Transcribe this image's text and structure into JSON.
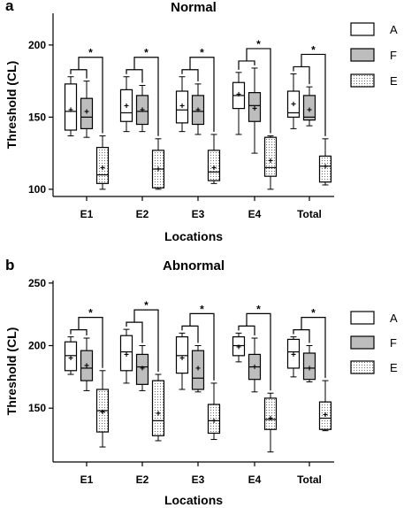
{
  "colors": {
    "A": "#ffffff",
    "F": "#bdbdbd",
    "E": "#ffffff",
    "stroke": "#000000",
    "dots": "#707070"
  },
  "legend": [
    {
      "key": "A",
      "label": "A",
      "fill": "white"
    },
    {
      "key": "F",
      "label": "F",
      "fill": "gray"
    },
    {
      "key": "E",
      "label": "E",
      "fill": "dotted"
    }
  ],
  "chart_data": [
    {
      "type": "box",
      "panel": "a",
      "title": "Normal",
      "xlabel": "Locations",
      "ylabel": "Threshold (CL)",
      "ylim": [
        95,
        222
      ],
      "yticks": [
        100,
        150,
        200
      ],
      "categories": [
        "E1",
        "E2",
        "E3",
        "E4",
        "Total"
      ],
      "significance_marker": "*",
      "series": [
        {
          "name": "A",
          "boxes": [
            {
              "min": 137,
              "q1": 141,
              "median": 154,
              "q3": 173,
              "max": 178,
              "mean": 155
            },
            {
              "min": 140,
              "q1": 147,
              "median": 153,
              "q3": 169,
              "max": 178,
              "mean": 158
            },
            {
              "min": 140,
              "q1": 146,
              "median": 155,
              "q3": 168,
              "max": 178,
              "mean": 158
            },
            {
              "min": 138,
              "q1": 156,
              "median": 165,
              "q3": 174,
              "max": 181,
              "mean": 166
            },
            {
              "min": 142,
              "q1": 150,
              "median": 153,
              "q3": 168,
              "max": 180,
              "mean": 159
            }
          ]
        },
        {
          "name": "F",
          "boxes": [
            {
              "min": 136,
              "q1": 142,
              "median": 150,
              "q3": 163,
              "max": 175,
              "mean": 154
            },
            {
              "min": 140,
              "q1": 145,
              "median": 154,
              "q3": 165,
              "max": 172,
              "mean": 155
            },
            {
              "min": 138,
              "q1": 145,
              "median": 154,
              "q3": 165,
              "max": 173,
              "mean": 155
            },
            {
              "min": 125,
              "q1": 147,
              "median": 158,
              "q3": 167,
              "max": 184,
              "mean": 156
            },
            {
              "min": 144,
              "q1": 148,
              "median": 150,
              "q3": 165,
              "max": 171,
              "mean": 155
            }
          ]
        },
        {
          "name": "E",
          "boxes": [
            {
              "min": 100,
              "q1": 104,
              "median": 110,
              "q3": 129,
              "max": 137,
              "mean": 115
            },
            {
              "min": 100,
              "q1": 101,
              "median": 114,
              "q3": 127,
              "max": 135,
              "mean": 114
            },
            {
              "min": 104,
              "q1": 106,
              "median": 112,
              "q3": 127,
              "max": 138,
              "mean": 115
            },
            {
              "min": 100,
              "q1": 109,
              "median": 115,
              "q3": 136,
              "max": 137,
              "mean": 120
            },
            {
              "min": 103,
              "q1": 105,
              "median": 116,
              "q3": 123,
              "max": 135,
              "mean": 116
            }
          ]
        }
      ]
    },
    {
      "type": "box",
      "panel": "b",
      "title": "Abnormal",
      "xlabel": "Locations",
      "ylabel": "Threshold (CL)",
      "ylim": [
        107,
        252
      ],
      "yticks": [
        150,
        200,
        250
      ],
      "categories": [
        "E1",
        "E2",
        "E3",
        "E4",
        "Total"
      ],
      "significance_marker": "*",
      "series": [
        {
          "name": "A",
          "boxes": [
            {
              "min": 177,
              "q1": 180,
              "median": 192,
              "q3": 203,
              "max": 207,
              "mean": 190
            },
            {
              "min": 170,
              "q1": 180,
              "median": 195,
              "q3": 208,
              "max": 213,
              "mean": 193
            },
            {
              "min": 165,
              "q1": 178,
              "median": 192,
              "q3": 207,
              "max": 210,
              "mean": 190
            },
            {
              "min": 187,
              "q1": 192,
              "median": 200,
              "q3": 207,
              "max": 210,
              "mean": 199
            },
            {
              "min": 175,
              "q1": 182,
              "median": 195,
              "q3": 205,
              "max": 207,
              "mean": 193
            }
          ]
        },
        {
          "name": "F",
          "boxes": [
            {
              "min": 164,
              "q1": 172,
              "median": 182,
              "q3": 196,
              "max": 206,
              "mean": 184
            },
            {
              "min": 164,
              "q1": 169,
              "median": 183,
              "q3": 193,
              "max": 200,
              "mean": 182
            },
            {
              "min": 163,
              "q1": 165,
              "median": 174,
              "q3": 196,
              "max": 200,
              "mean": 182
            },
            {
              "min": 163,
              "q1": 173,
              "median": 183,
              "q3": 193,
              "max": 206,
              "mean": 183
            },
            {
              "min": 171,
              "q1": 173,
              "median": 182,
              "q3": 194,
              "max": 200,
              "mean": 182
            }
          ]
        },
        {
          "name": "E",
          "boxes": [
            {
              "min": 119,
              "q1": 131,
              "median": 148,
              "q3": 165,
              "max": 180,
              "mean": 147
            },
            {
              "min": 124,
              "q1": 128,
              "median": 140,
              "q3": 172,
              "max": 177,
              "mean": 146
            },
            {
              "min": 125,
              "q1": 130,
              "median": 140,
              "q3": 153,
              "max": 170,
              "mean": 140
            },
            {
              "min": 115,
              "q1": 133,
              "median": 141,
              "q3": 158,
              "max": 162,
              "mean": 142
            },
            {
              "min": 132,
              "q1": 133,
              "median": 142,
              "q3": 155,
              "max": 172,
              "mean": 145
            }
          ]
        }
      ]
    }
  ]
}
